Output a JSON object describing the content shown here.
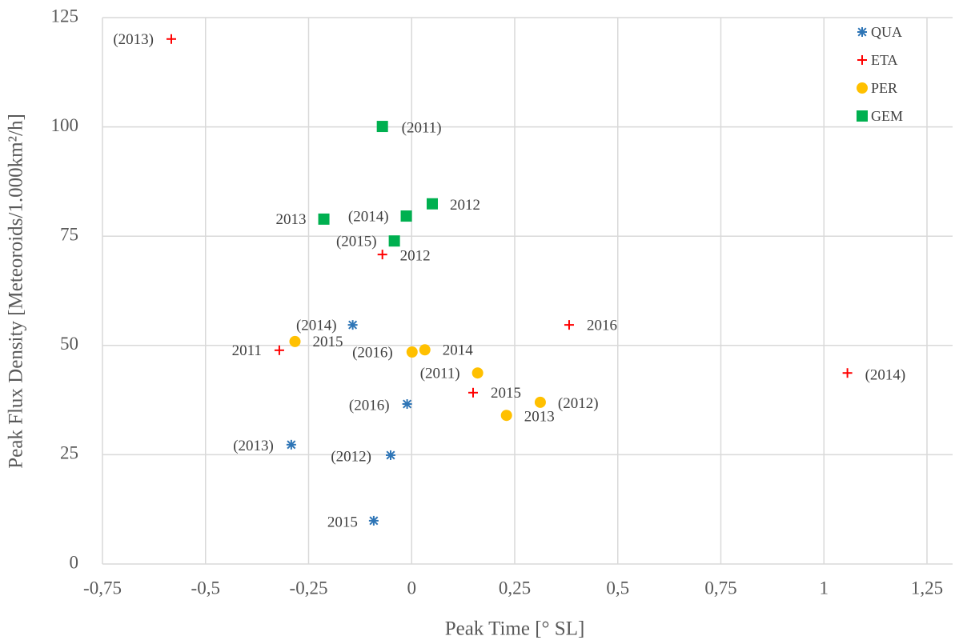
{
  "chart_data": {
    "type": "scatter",
    "xlabel": "Peak Time [° SL]",
    "ylabel": "Peak Flux Density [Meteoroids/1.000km²/h]",
    "xlim": [
      -0.75,
      1.25
    ],
    "xticks": [
      {
        "value": -0.75,
        "label": "-0,75"
      },
      {
        "value": -0.5,
        "label": "-0,5"
      },
      {
        "value": -0.25,
        "label": "-0,25"
      },
      0,
      {
        "value": 0.25,
        "label": "0,25"
      },
      {
        "value": 0.5,
        "label": "0,5"
      },
      {
        "value": 0.75,
        "label": "0,75"
      },
      1,
      {
        "value": 1.25,
        "label": "1,25"
      }
    ],
    "ylim": [
      0,
      125
    ],
    "yticks": [
      0,
      25,
      50,
      75,
      100,
      125
    ],
    "grid": true,
    "legend": "top-right",
    "series": [
      {
        "name": "QUA",
        "color": "#2e75b6",
        "marker": "asterisk",
        "x": [
          -0.143,
          -0.011,
          -0.292,
          -0.051,
          -0.092
        ],
        "values": [
          54.7,
          36.6,
          27.3,
          24.9,
          9.9
        ],
        "point_labels": [
          "(2014)",
          "(2016)",
          "(2013)",
          "(2012)",
          "2015"
        ]
      },
      {
        "name": "ETA",
        "color": "#ff0000",
        "marker": "plus",
        "x": [
          -0.583,
          -0.071,
          -0.321,
          0.382,
          0.149,
          1.057
        ],
        "values": [
          120.1,
          70.8,
          48.9,
          54.7,
          39.2,
          43.7
        ],
        "point_labels": [
          "(2013)",
          "2012",
          "2011",
          "2016",
          "2015",
          "(2014)"
        ]
      },
      {
        "name": "PER",
        "color": "#ffc000",
        "marker": "circle",
        "x": [
          -0.283,
          0.001,
          0.032,
          0.16,
          0.312,
          0.23
        ],
        "values": [
          50.9,
          48.5,
          49.0,
          43.7,
          37.0,
          34.0
        ],
        "point_labels": [
          "2015",
          "(2016)",
          "2014",
          "(2011)",
          "(2012)",
          "2013"
        ]
      },
      {
        "name": "GEM",
        "color": "#00b050",
        "marker": "square",
        "x": [
          -0.071,
          0.05,
          -0.013,
          -0.213,
          -0.042
        ],
        "values": [
          100.1,
          82.4,
          79.6,
          78.9,
          73.9
        ],
        "point_labels": [
          "(2011)",
          "2012",
          "(2014)",
          "2013",
          "(2015)"
        ]
      }
    ]
  }
}
